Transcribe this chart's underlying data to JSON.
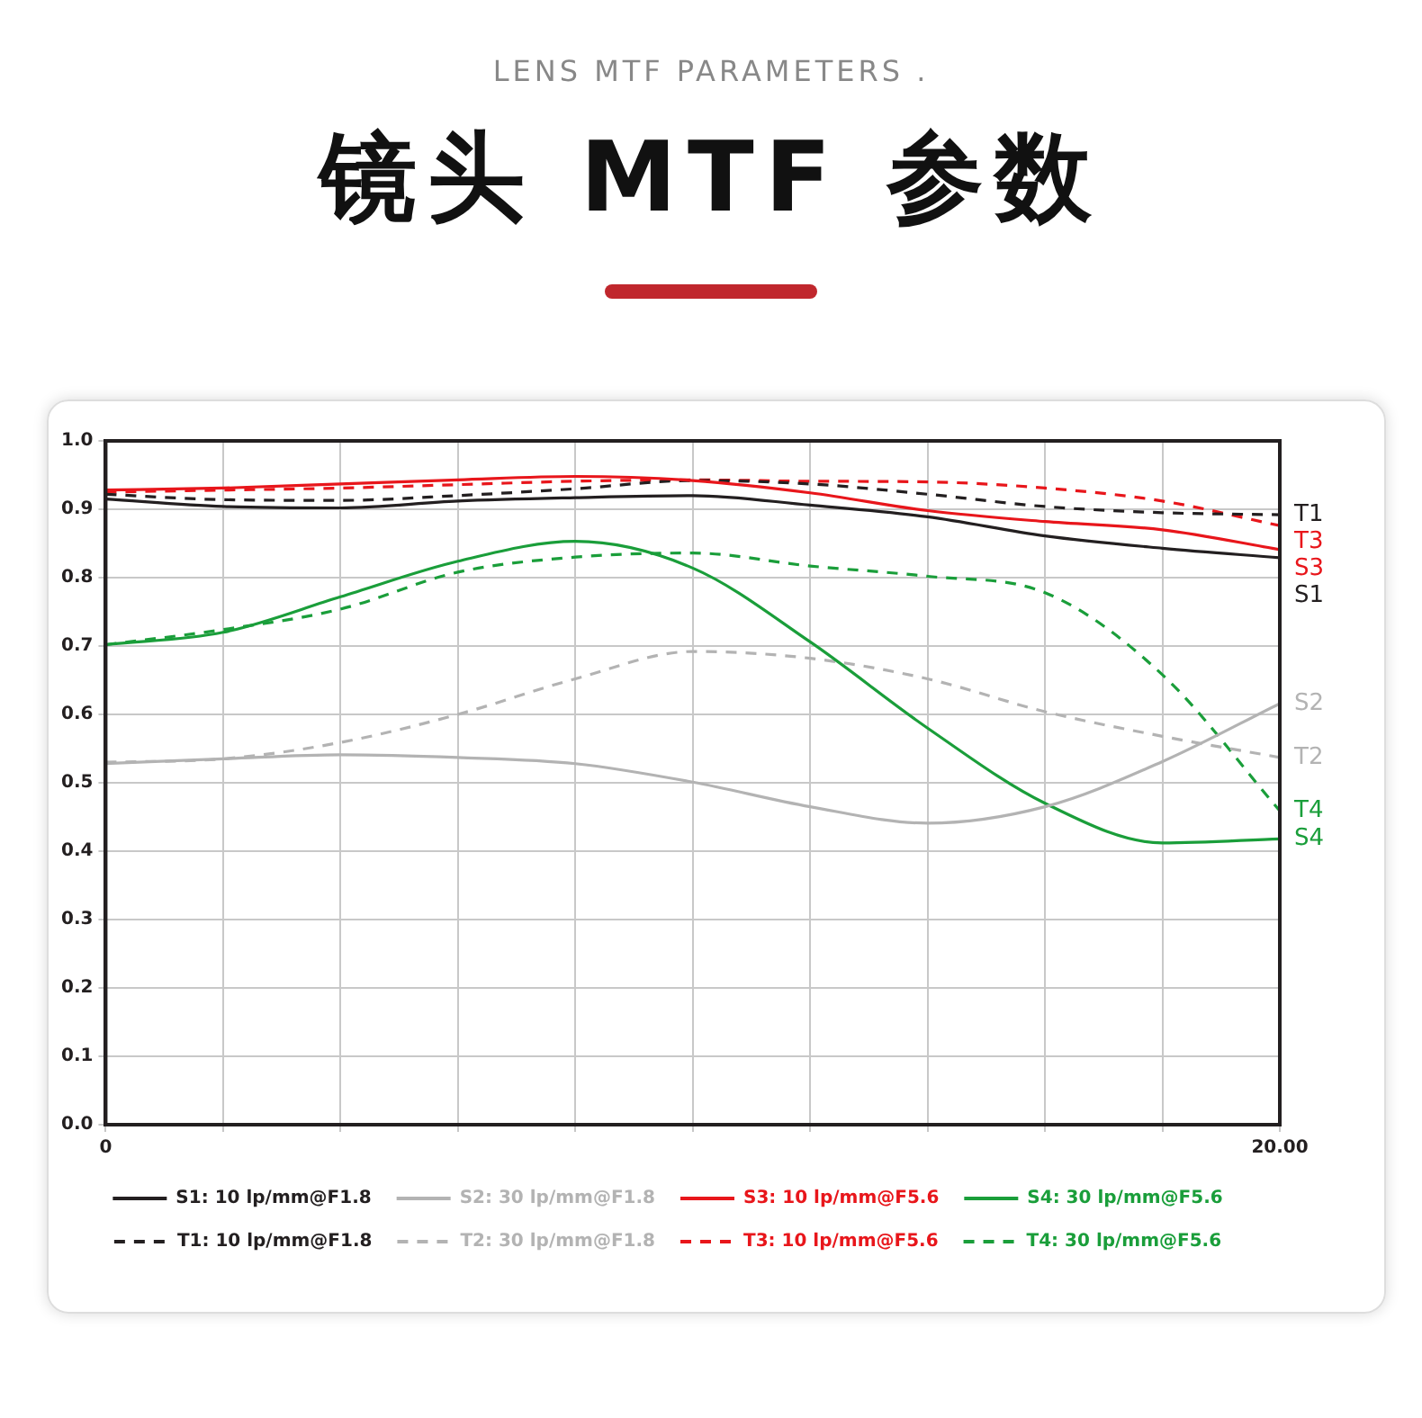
{
  "chart_data": {
    "type": "line",
    "title": "镜头 MTF 参数",
    "subtitle": "LENS MTF PARAMETERS .",
    "x": [
      0,
      2,
      4,
      6,
      8,
      10,
      12,
      14,
      16,
      18,
      20
    ],
    "series": [
      {
        "name": "S1: 10 lp/mm@F1.8",
        "color": "#231f20",
        "line_style": "solid",
        "values": [
          0.915,
          0.904,
          0.902,
          0.912,
          0.917,
          0.92,
          0.906,
          0.889,
          0.861,
          0.843,
          0.829
        ]
      },
      {
        "name": "S2: 30 lp/mm@F1.8",
        "color": "#b3b3b3",
        "line_style": "solid",
        "values": [
          0.528,
          0.535,
          0.541,
          0.537,
          0.528,
          0.501,
          0.465,
          0.441,
          0.465,
          0.531,
          0.616
        ]
      },
      {
        "name": "S3: 10 lp/mm@F5.6",
        "color": "#e8161b",
        "line_style": "solid",
        "values": [
          0.928,
          0.931,
          0.937,
          0.943,
          0.948,
          0.942,
          0.924,
          0.898,
          0.882,
          0.87,
          0.841
        ]
      },
      {
        "name": "S4: 30 lp/mm@F5.6",
        "color": "#1a9e3a",
        "line_style": "solid",
        "values": [
          0.702,
          0.72,
          0.772,
          0.824,
          0.853,
          0.814,
          0.706,
          0.58,
          0.47,
          0.412,
          0.418
        ]
      },
      {
        "name": "T1: 10 lp/mm@F1.8",
        "color": "#231f20",
        "line_style": "dashed",
        "values": [
          0.922,
          0.914,
          0.913,
          0.92,
          0.93,
          0.942,
          0.937,
          0.922,
          0.904,
          0.895,
          0.892
        ]
      },
      {
        "name": "T2: 30 lp/mm@F1.8",
        "color": "#b3b3b3",
        "line_style": "dashed",
        "values": [
          0.53,
          0.535,
          0.559,
          0.6,
          0.652,
          0.692,
          0.682,
          0.652,
          0.604,
          0.568,
          0.537
        ]
      },
      {
        "name": "T3: 10 lp/mm@F5.6",
        "color": "#e8161b",
        "line_style": "dashed",
        "values": [
          0.925,
          0.928,
          0.931,
          0.936,
          0.941,
          0.943,
          0.941,
          0.94,
          0.931,
          0.912,
          0.876
        ]
      },
      {
        "name": "T4: 30 lp/mm@F5.6",
        "color": "#1a9e3a",
        "line_style": "dashed",
        "values": [
          0.702,
          0.724,
          0.754,
          0.808,
          0.83,
          0.836,
          0.817,
          0.802,
          0.778,
          0.658,
          0.459
        ]
      }
    ],
    "xlim": [
      0,
      20
    ],
    "xticks": [
      {
        "value": 0,
        "label": "0"
      },
      {
        "value": 2,
        "label": null
      },
      {
        "value": 4,
        "label": null
      },
      {
        "value": 6,
        "label": null
      },
      {
        "value": 8,
        "label": null
      },
      {
        "value": 10,
        "label": null
      },
      {
        "value": 12,
        "label": null
      },
      {
        "value": 14,
        "label": null
      },
      {
        "value": 16,
        "label": null
      },
      {
        "value": 18,
        "label": null
      },
      {
        "value": 20,
        "label": "20.00"
      }
    ],
    "ylim": [
      0,
      1
    ],
    "yticks": [
      {
        "value": 0,
        "label": "0.0"
      },
      0.1,
      0.2,
      0.3,
      0.4,
      0.5,
      0.6,
      0.7,
      0.8,
      0.9,
      {
        "value": 1,
        "label": "1.0"
      }
    ],
    "annotations": [
      "T1",
      "T3",
      "S3",
      "S1",
      "S2",
      "T2",
      "T4",
      "S4"
    ],
    "grid": true,
    "legend": "bottom",
    "marker": "none"
  }
}
